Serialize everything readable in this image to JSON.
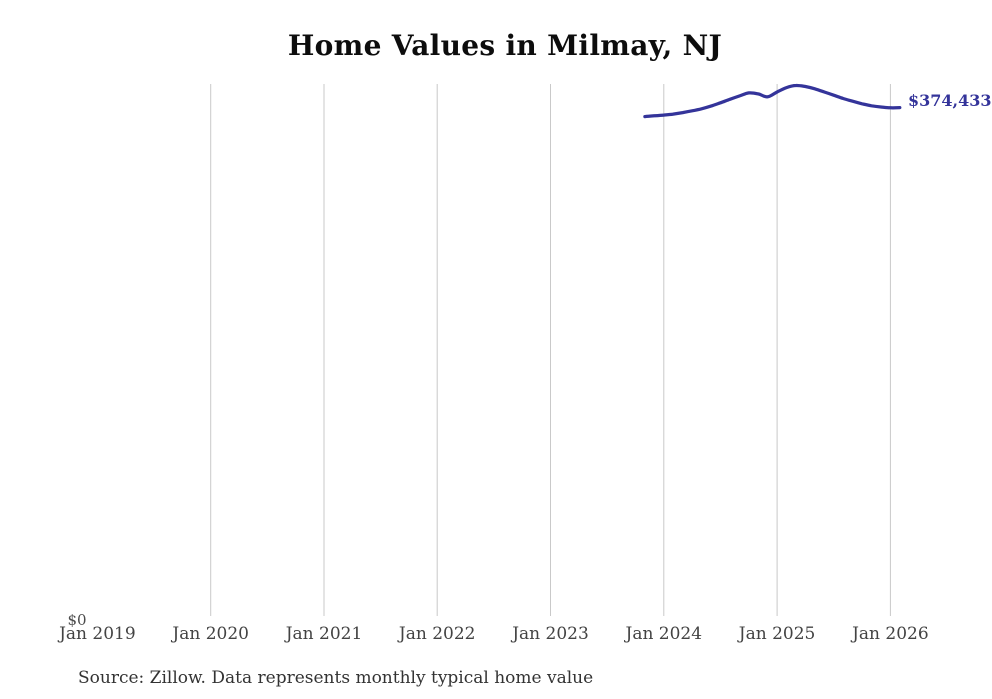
{
  "title": {
    "text": "Home Values in Milmay, NJ"
  },
  "source_note": {
    "text": "Source: Zillow. Data represents monthly typical home value"
  },
  "end_label": {
    "text": "$374,433"
  },
  "y_axis": {
    "zero_label": "$0"
  },
  "x_axis": {
    "ticks": [
      {
        "label": "Jan 2019",
        "gridline": false
      },
      {
        "label": "Jan 2020",
        "gridline": true
      },
      {
        "label": "Jan 2021",
        "gridline": true
      },
      {
        "label": "Jan 2022",
        "gridline": true
      },
      {
        "label": "Jan 2023",
        "gridline": true
      },
      {
        "label": "Jan 2024",
        "gridline": true
      },
      {
        "label": "Jan 2025",
        "gridline": true
      },
      {
        "label": "Jan 2026",
        "gridline": true
      }
    ]
  },
  "colors": {
    "line": "#34349a",
    "end_label": "#34349a",
    "grid": "#c9c9c9",
    "axis_label": "#434343",
    "title": "#0d0d0d",
    "source": "#333333"
  },
  "chart_data": {
    "type": "line",
    "title": "Home Values in Milmay, NJ",
    "x": [
      "Nov 2023",
      "Dec 2023",
      "Jan 2024",
      "Feb 2024",
      "Mar 2024",
      "Apr 2024",
      "May 2024",
      "Jun 2024",
      "Jul 2024",
      "Aug 2024",
      "Sep 2024",
      "Oct 2024",
      "Nov 2024",
      "Dec 2024",
      "Jan 2025",
      "Feb 2025",
      "Mar 2025",
      "Apr 2025",
      "May 2025",
      "Jun 2025",
      "Jul 2025",
      "Aug 2025",
      "Sep 2025",
      "Oct 2025",
      "Nov 2025",
      "Dec 2025",
      "Jan 2026",
      "Feb 2026"
    ],
    "series": [
      {
        "name": "Typical home value",
        "values": [
          367800,
          368400,
          368900,
          369700,
          370800,
          372100,
          373600,
          375600,
          378000,
          380600,
          383000,
          385300,
          384600,
          382400,
          386000,
          389200,
          390800,
          390000,
          388300,
          386000,
          383600,
          381200,
          379200,
          377300,
          375800,
          374900,
          374300,
          374433
        ]
      }
    ],
    "end_label": "$374,433",
    "y_zero_label": "$0",
    "ylim": [
      0,
      391200
    ],
    "x_tick_labels": [
      "Jan 2019",
      "Jan 2020",
      "Jan 2021",
      "Jan 2022",
      "Jan 2023",
      "Jan 2024",
      "Jan 2025",
      "Jan 2026"
    ],
    "grid": "vertical yearly gridlines, no horizontal axis line",
    "legend": "none"
  }
}
